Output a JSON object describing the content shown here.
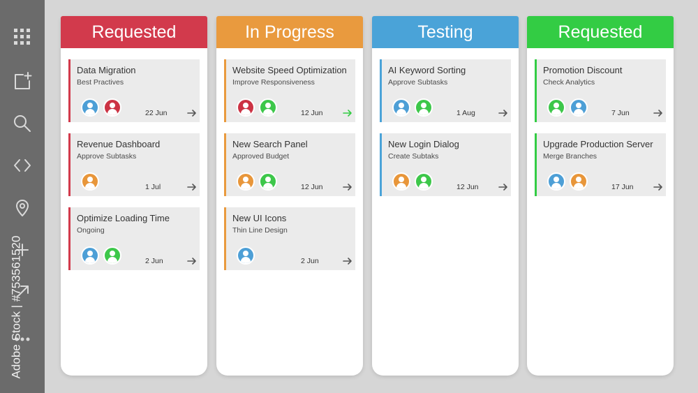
{
  "sidebar": {
    "icons": [
      "grid-icon",
      "new-note-icon",
      "search-icon",
      "code-icon",
      "location-pin-icon",
      "plus-icon",
      "share-icon",
      "more-icon"
    ],
    "watermark": "Adobe Stock | #753561520"
  },
  "colors": {
    "red": "#d23a4c",
    "orange": "#e99a3e",
    "blue": "#4aa3d8",
    "green": "#33cc44",
    "avatar_blue": "#4d9fd6",
    "avatar_red": "#cc3344",
    "avatar_green": "#3dc74a",
    "avatar_orange": "#e8963a"
  },
  "columns": [
    {
      "title": "Requested",
      "color": "red",
      "cards": [
        {
          "title": "Data Migration",
          "subtitle": "Best Practives",
          "avatars": [
            "avatar_blue",
            "avatar_red"
          ],
          "date": "22 Jun",
          "arrow": "default"
        },
        {
          "title": "Revenue Dashboard",
          "subtitle": "Approve Subtasks",
          "avatars": [
            "avatar_orange"
          ],
          "date": "1 Jul",
          "arrow": "default"
        },
        {
          "title": "Optimize Loading Time",
          "subtitle": "Ongoing",
          "avatars": [
            "avatar_blue",
            "avatar_green"
          ],
          "date": "2 Jun",
          "arrow": "default"
        }
      ]
    },
    {
      "title": "In Progress",
      "color": "orange",
      "cards": [
        {
          "title": "Website Speed Optimization",
          "subtitle": "Improve Responsiveness",
          "avatars": [
            "avatar_red",
            "avatar_green"
          ],
          "date": "12 Jun",
          "arrow": "green"
        },
        {
          "title": "New Search Panel",
          "subtitle": "Approved Budget",
          "avatars": [
            "avatar_orange",
            "avatar_green"
          ],
          "date": "12 Jun",
          "arrow": "default"
        },
        {
          "title": "New UI Icons",
          "subtitle": "Thin Line Design",
          "avatars": [
            "avatar_blue"
          ],
          "date": "2 Jun",
          "arrow": "default"
        }
      ]
    },
    {
      "title": "Testing",
      "color": "blue",
      "cards": [
        {
          "title": "AI Keyword Sorting",
          "subtitle": "Approve Subtasks",
          "avatars": [
            "avatar_blue",
            "avatar_green"
          ],
          "date": "1 Aug",
          "arrow": "default"
        },
        {
          "title": "New Login Dialog",
          "subtitle": "Create Subtaks",
          "avatars": [
            "avatar_orange",
            "avatar_green"
          ],
          "date": "12 Jun",
          "arrow": "default"
        }
      ]
    },
    {
      "title": "Requested",
      "color": "green",
      "cards": [
        {
          "title": "Promotion Discount",
          "subtitle": "Check Analytics",
          "avatars": [
            "avatar_green",
            "avatar_blue"
          ],
          "date": "7 Jun",
          "arrow": "default"
        },
        {
          "title": "Upgrade Production Server",
          "subtitle": "Merge Branches",
          "avatars": [
            "avatar_blue",
            "avatar_orange"
          ],
          "date": "17 Jun",
          "arrow": "default"
        }
      ]
    }
  ]
}
